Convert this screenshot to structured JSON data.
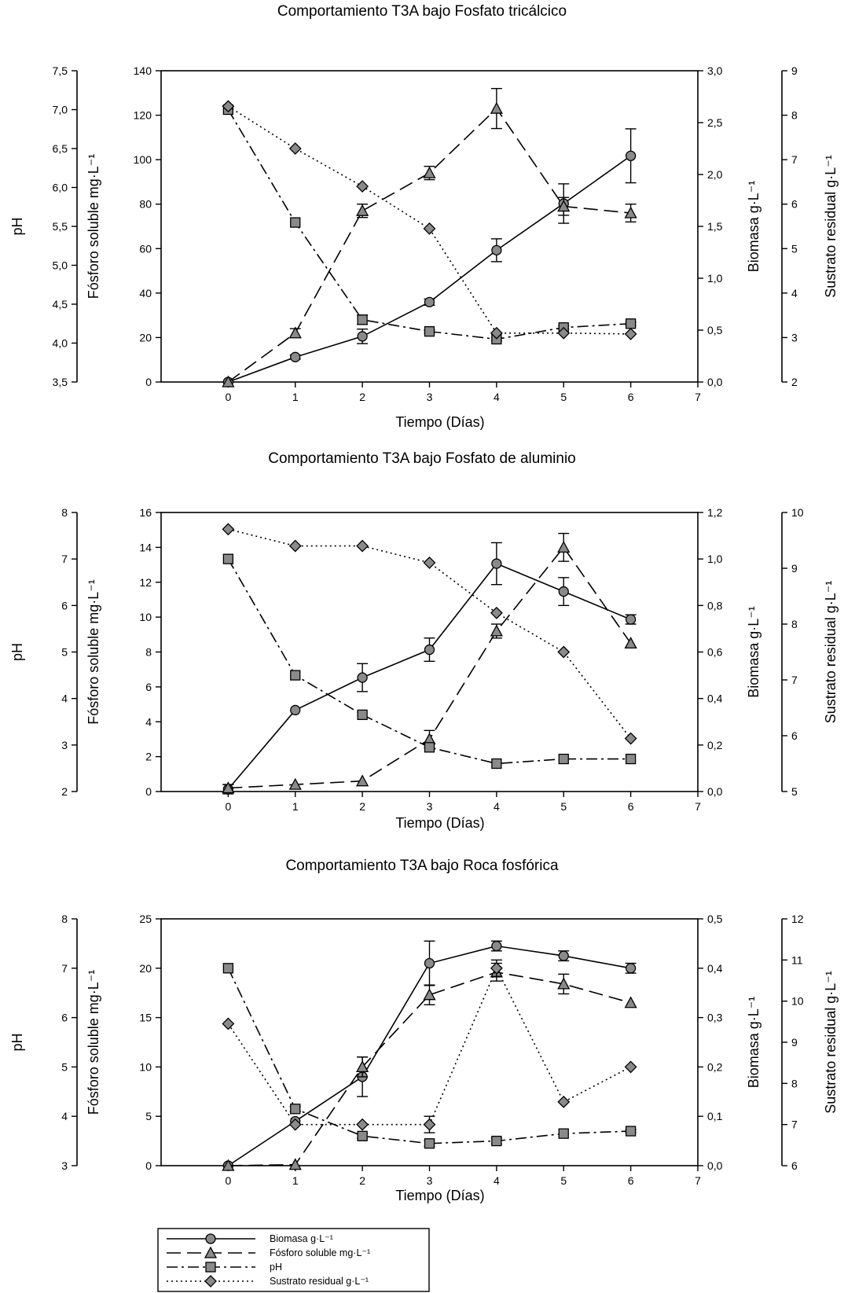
{
  "legend": [
    {
      "key": "biomasa",
      "label": "Biomasa g·L⁻¹"
    },
    {
      "key": "fosforo",
      "label": "Fósforo soluble mg·L⁻¹"
    },
    {
      "key": "ph",
      "label": "pH"
    },
    {
      "key": "sustrato",
      "label": "Sustrato residual g·L⁻¹"
    }
  ],
  "chart_data": [
    {
      "type": "line",
      "title": "Comportamiento T3A bajo Fosfato tricálcico",
      "xlabel": "Tiempo (Días)",
      "x_ticks": [
        "0",
        "1",
        "2",
        "3",
        "4",
        "5",
        "6",
        "7"
      ],
      "xlim": [
        -1,
        7
      ],
      "x": [
        0,
        1,
        2,
        3,
        4,
        5,
        6
      ],
      "axes": {
        "ph": {
          "label": "pH",
          "lim": [
            3.5,
            7.5
          ],
          "ticks": [
            "3,5",
            "4,0",
            "4,5",
            "5,0",
            "5,5",
            "6,0",
            "6,5",
            "7,0",
            "7,5"
          ]
        },
        "fosforo": {
          "label": "Fósforo soluble mg·L⁻¹",
          "lim": [
            0,
            140
          ],
          "ticks": [
            "0",
            "20",
            "40",
            "60",
            "80",
            "100",
            "120",
            "140"
          ]
        },
        "biomasa": {
          "label": "Biomasa g·L⁻¹",
          "lim": [
            0,
            3
          ],
          "ticks": [
            "0,0",
            "0,5",
            "1,0",
            "1,5",
            "2,0",
            "2,5",
            "3,0"
          ]
        },
        "sustrato": {
          "label": "Sustrato residual g·L⁻¹",
          "lim": [
            2,
            9
          ],
          "ticks": [
            "2",
            "3",
            "4",
            "5",
            "6",
            "7",
            "8",
            "9"
          ]
        }
      },
      "series": [
        {
          "key": "biomasa",
          "axis": "biomasa",
          "values": [
            0.0,
            0.24,
            0.44,
            0.77,
            1.27,
            1.72,
            2.18
          ],
          "errors": [
            0.0,
            0.02,
            0.07,
            0.03,
            0.11,
            0.19,
            0.26
          ]
        },
        {
          "key": "fosforo",
          "axis": "fosforo",
          "values": [
            0,
            22,
            77,
            94,
            123,
            79,
            76
          ],
          "errors": [
            0,
            2,
            3,
            3,
            9,
            4,
            4
          ]
        },
        {
          "key": "ph",
          "axis": "ph",
          "values": [
            7.0,
            5.55,
            4.3,
            4.15,
            4.05,
            4.2,
            4.25
          ],
          "errors": [
            0,
            0,
            0.06,
            0.02,
            0.02,
            0.02,
            0.02
          ]
        },
        {
          "key": "sustrato",
          "axis": "sustrato",
          "values": [
            8.2,
            7.25,
            6.4,
            5.45,
            3.1,
            3.1,
            3.08
          ],
          "errors": [
            0,
            0,
            0,
            0,
            0,
            0,
            0
          ]
        }
      ]
    },
    {
      "type": "line",
      "title": "Comportamiento T3A bajo Fosfato de aluminio",
      "xlabel": "Tiempo (Días)",
      "x_ticks": [
        "0",
        "1",
        "2",
        "3",
        "4",
        "5",
        "6",
        "7"
      ],
      "xlim": [
        -1,
        7
      ],
      "x": [
        0,
        1,
        2,
        3,
        4,
        5,
        6
      ],
      "axes": {
        "ph": {
          "label": "pH",
          "lim": [
            2,
            8
          ],
          "ticks": [
            "2",
            "3",
            "4",
            "5",
            "6",
            "7",
            "8"
          ]
        },
        "fosforo": {
          "label": "Fósforo soluble mg·L⁻¹",
          "lim": [
            0,
            16
          ],
          "ticks": [
            "0",
            "2",
            "4",
            "6",
            "8",
            "10",
            "12",
            "14",
            "16"
          ]
        },
        "biomasa": {
          "label": "Biomasa g·L⁻¹",
          "lim": [
            0,
            1.2
          ],
          "ticks": [
            "0,0",
            "0,2",
            "0,4",
            "0,6",
            "0,8",
            "1,0",
            "1,2"
          ]
        },
        "sustrato": {
          "label": "Sustrato residual g·L⁻¹",
          "lim": [
            5,
            10
          ],
          "ticks": [
            "5",
            "6",
            "7",
            "8",
            "9",
            "10"
          ]
        }
      },
      "series": [
        {
          "key": "biomasa",
          "axis": "biomasa",
          "values": [
            0.01,
            0.35,
            0.49,
            0.61,
            0.98,
            0.86,
            0.74
          ],
          "errors": [
            0.02,
            0,
            0.06,
            0.05,
            0.09,
            0.06,
            0.02
          ]
        },
        {
          "key": "fosforo",
          "axis": "fosforo",
          "values": [
            0.2,
            0.4,
            0.6,
            3.0,
            9.2,
            14.0,
            8.5
          ],
          "errors": [
            0.2,
            0,
            0,
            0.5,
            0.4,
            0.8,
            0
          ]
        },
        {
          "key": "ph",
          "axis": "ph",
          "values": [
            7.0,
            4.5,
            3.65,
            2.95,
            2.6,
            2.7,
            2.7
          ],
          "errors": [
            0,
            0,
            0,
            0,
            0,
            0,
            0
          ]
        },
        {
          "key": "sustrato",
          "axis": "sustrato",
          "values": [
            9.7,
            9.4,
            9.4,
            9.1,
            8.2,
            7.5,
            5.95
          ],
          "errors": [
            0,
            0,
            0,
            0,
            0,
            0,
            0
          ]
        }
      ]
    },
    {
      "type": "line",
      "title": "Comportamiento T3A bajo Roca fosfórica",
      "xlabel": "Tiempo (Días)",
      "x_ticks": [
        "0",
        "1",
        "2",
        "3",
        "4",
        "5",
        "6",
        "7"
      ],
      "xlim": [
        -1,
        7
      ],
      "x": [
        0,
        1,
        2,
        3,
        4,
        5,
        6
      ],
      "axes": {
        "ph": {
          "label": "pH",
          "lim": [
            3,
            8
          ],
          "ticks": [
            "3",
            "4",
            "5",
            "6",
            "7",
            "8"
          ]
        },
        "fosforo": {
          "label": "Fósforo soluble mg·L⁻¹",
          "lim": [
            0,
            25
          ],
          "ticks": [
            "0",
            "5",
            "10",
            "15",
            "20",
            "25"
          ]
        },
        "biomasa": {
          "label": "Biomasa g·L⁻¹",
          "lim": [
            0,
            0.5
          ],
          "ticks": [
            "0,0",
            "0,1",
            "0,2",
            "0,3",
            "0,4",
            "0,5"
          ]
        },
        "sustrato": {
          "label": "Sustrato residual g·L⁻¹",
          "lim": [
            6,
            12
          ],
          "ticks": [
            "6",
            "7",
            "8",
            "9",
            "10",
            "11",
            "12"
          ]
        }
      },
      "series": [
        {
          "key": "biomasa",
          "axis": "biomasa",
          "values": [
            0.0,
            0.09,
            0.18,
            0.41,
            0.445,
            0.425,
            0.4
          ],
          "errors": [
            0,
            0,
            0.04,
            0.045,
            0.01,
            0.01,
            0.01
          ]
        },
        {
          "key": "fosforo",
          "axis": "fosforo",
          "values": [
            0,
            0.1,
            10,
            17.3,
            19.6,
            18.4,
            16.5
          ],
          "errors": [
            0,
            0,
            1,
            1,
            0.9,
            1,
            0
          ]
        },
        {
          "key": "ph",
          "axis": "ph",
          "values": [
            7.0,
            4.15,
            3.6,
            3.45,
            3.5,
            3.65,
            3.7
          ],
          "errors": [
            0,
            0.05,
            0.05,
            0.06,
            0.06,
            0,
            0.03
          ]
        },
        {
          "key": "sustrato",
          "axis": "sustrato",
          "values": [
            9.45,
            7.0,
            7.0,
            7.0,
            10.8,
            7.55,
            8.4
          ],
          "errors": [
            0,
            0,
            0,
            0.2,
            0.2,
            0,
            0
          ]
        }
      ]
    }
  ]
}
